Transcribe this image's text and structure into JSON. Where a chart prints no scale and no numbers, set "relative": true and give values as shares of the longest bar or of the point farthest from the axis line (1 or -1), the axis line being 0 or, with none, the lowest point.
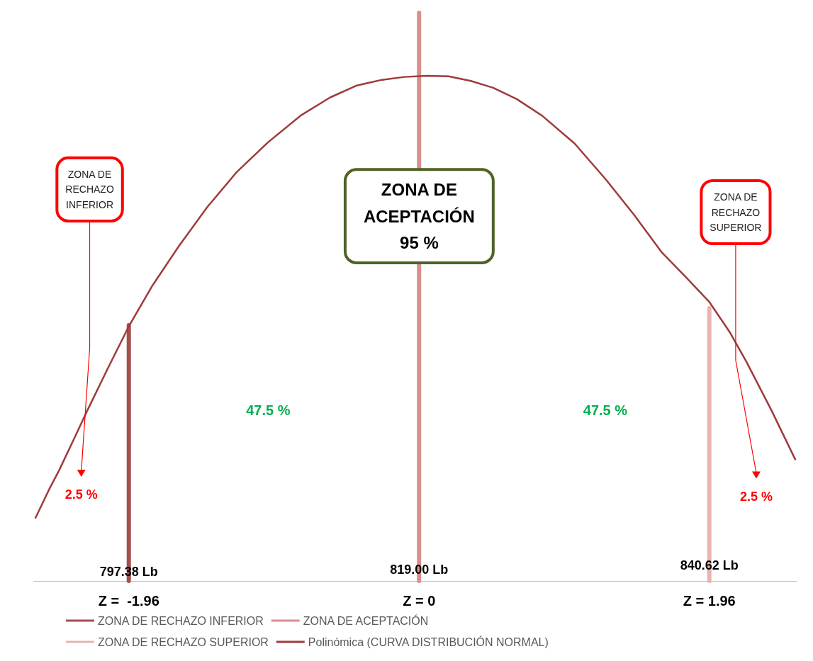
{
  "chart_data": {
    "type": "line",
    "relative": true,
    "xlim": [
      -2.6,
      2.55
    ],
    "xticks": [
      {
        "value": -1.96,
        "label": "Z =  -1.96"
      },
      {
        "value": 0,
        "label": "Z = 0"
      },
      {
        "value": 1.96,
        "label": "Z = 1.96"
      }
    ],
    "series": [
      {
        "name": "ZONA DE RECHAZO INFERIOR",
        "color": "#a5504c",
        "x": [
          -1.96,
          -1.96
        ],
        "values": [
          0,
          0.45
        ]
      },
      {
        "name": "ZONA DE ACEPTACIÓN",
        "color": "#d98f8c",
        "x": [
          0,
          0
        ],
        "values": [
          0,
          1
        ]
      },
      {
        "name": "ZONA DE RECHAZO SUPERIOR",
        "color": "#eab3b0",
        "x": [
          1.96,
          1.96
        ],
        "values": [
          0,
          0.48
        ]
      },
      {
        "name": "Polinómica (CURVA DISTRIBUCIÓN NORMAL)",
        "color": "#9e3b3b",
        "x": [
          -2.59,
          -2.5,
          -2.43,
          -2.33,
          -2.24,
          -2.1,
          -1.96,
          -1.8,
          -1.62,
          -1.43,
          -1.23,
          -1.02,
          -0.8,
          -0.6,
          -0.42,
          -0.25,
          -0.1,
          0.05,
          0.2,
          0.35,
          0.5,
          0.66,
          0.83,
          1.05,
          1.26,
          1.45,
          1.64,
          1.8,
          1.96,
          2.1,
          2.21,
          2.38,
          2.54
        ],
        "values": [
          0.111,
          0.16,
          0.195,
          0.25,
          0.3,
          0.375,
          0.448,
          0.52,
          0.59,
          0.658,
          0.72,
          0.772,
          0.819,
          0.851,
          0.872,
          0.882,
          0.887,
          0.889,
          0.888,
          0.88,
          0.868,
          0.848,
          0.819,
          0.77,
          0.707,
          0.645,
          0.578,
          0.535,
          0.491,
          0.437,
          0.386,
          0.3,
          0.214
        ]
      }
    ],
    "annotations": [
      "ZONA DE\nRECHAZO\nINFERIOR",
      "ZONA DE\nACEPTACIÓN\n95 %",
      "ZONA DE\nRECHAZO\nSUPERIOR",
      "47.5 %",
      "47.5 %",
      "2.5 %",
      "2.5 %",
      {
        "text": "797.38 Lb",
        "x": -1.96,
        "y": 0.016
      },
      {
        "text": "819.00 Lb",
        "x": 0,
        "y": 0.02
      },
      {
        "text": "840.62 Lb",
        "x": 1.96,
        "y": 0.027
      }
    ],
    "legend": "bottom",
    "grid": false,
    "marker": "none"
  }
}
